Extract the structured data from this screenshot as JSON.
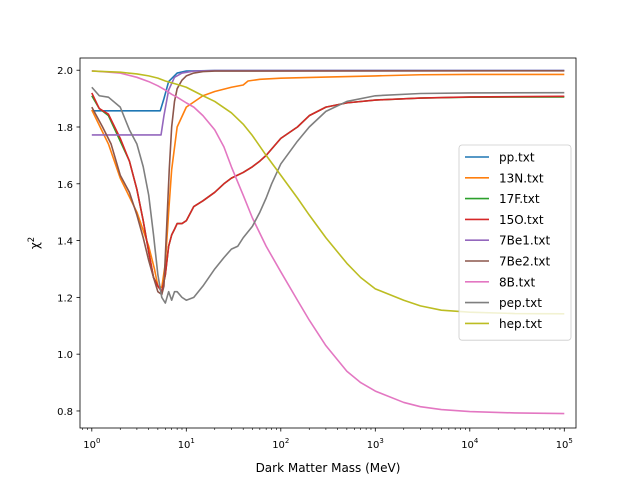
{
  "chart_data": {
    "type": "line",
    "xlabel": "Dark Matter Mass (MeV)",
    "ylabel": "χ",
    "ylabel_sup": "2",
    "xscale": "log",
    "xlim": [
      0.75,
      133000
    ],
    "ylim": [
      0.74,
      2.043
    ],
    "x_ticks": [
      {
        "value": 1,
        "base": "10",
        "exp": "0"
      },
      {
        "value": 10,
        "base": "10",
        "exp": "1"
      },
      {
        "value": 100,
        "base": "10",
        "exp": "2"
      },
      {
        "value": 1000,
        "base": "10",
        "exp": "3"
      },
      {
        "value": 10000,
        "base": "10",
        "exp": "4"
      },
      {
        "value": 100000,
        "base": "10",
        "exp": "5"
      }
    ],
    "y_ticks": [
      {
        "value": 0.8,
        "label": "0.8"
      },
      {
        "value": 1.0,
        "label": "1.0"
      },
      {
        "value": 1.2,
        "label": "1.2"
      },
      {
        "value": 1.4,
        "label": "1.4"
      },
      {
        "value": 1.6,
        "label": "1.6"
      },
      {
        "value": 1.8,
        "label": "1.8"
      },
      {
        "value": 2.0,
        "label": "2.0"
      }
    ],
    "legend_position": "center-right",
    "grid": false,
    "series": [
      {
        "name": "pp.txt",
        "color": "#1f77b4",
        "points": [
          [
            1,
            1.857
          ],
          [
            2,
            1.857
          ],
          [
            4,
            1.857
          ],
          [
            5.3,
            1.857
          ],
          [
            5.8,
            1.9
          ],
          [
            6.5,
            1.96
          ],
          [
            8,
            1.99
          ],
          [
            10,
            1.997
          ],
          [
            20,
            1.999
          ],
          [
            100000,
            1.999
          ]
        ]
      },
      {
        "name": "13N.txt",
        "color": "#ff7f0e",
        "points": [
          [
            1,
            1.86
          ],
          [
            1.5,
            1.74
          ],
          [
            2,
            1.62
          ],
          [
            3,
            1.5
          ],
          [
            4,
            1.38
          ],
          [
            4.6,
            1.3
          ],
          [
            5,
            1.24
          ],
          [
            5.5,
            1.235
          ],
          [
            6,
            1.32
          ],
          [
            6.5,
            1.5
          ],
          [
            7,
            1.65
          ],
          [
            8,
            1.8
          ],
          [
            10,
            1.87
          ],
          [
            15,
            1.91
          ],
          [
            20,
            1.925
          ],
          [
            30,
            1.94
          ],
          [
            40,
            1.948
          ],
          [
            45,
            1.962
          ],
          [
            60,
            1.968
          ],
          [
            100,
            1.972
          ],
          [
            300,
            1.976
          ],
          [
            1000,
            1.98
          ],
          [
            3000,
            1.984
          ],
          [
            10000,
            1.985
          ],
          [
            100000,
            1.985
          ]
        ]
      },
      {
        "name": "17F.txt",
        "color": "#2ca02c",
        "points": [
          [
            1,
            1.91
          ],
          [
            1.2,
            1.865
          ],
          [
            1.5,
            1.84
          ],
          [
            2,
            1.75
          ],
          [
            2.5,
            1.68
          ],
          [
            3,
            1.58
          ],
          [
            3.5,
            1.47
          ],
          [
            4,
            1.36
          ],
          [
            4.5,
            1.27
          ],
          [
            5,
            1.24
          ],
          [
            5.5,
            1.22
          ],
          [
            6,
            1.28
          ],
          [
            6.5,
            1.38
          ],
          [
            7,
            1.42
          ],
          [
            7.5,
            1.44
          ],
          [
            8,
            1.46
          ],
          [
            9,
            1.46
          ],
          [
            10,
            1.47
          ],
          [
            12,
            1.52
          ],
          [
            15,
            1.54
          ],
          [
            20,
            1.57
          ],
          [
            25,
            1.6
          ],
          [
            30,
            1.62
          ],
          [
            40,
            1.64
          ],
          [
            50,
            1.66
          ],
          [
            60,
            1.68
          ],
          [
            70,
            1.7
          ],
          [
            100,
            1.76
          ],
          [
            150,
            1.8
          ],
          [
            200,
            1.84
          ],
          [
            300,
            1.87
          ],
          [
            500,
            1.885
          ],
          [
            1000,
            1.895
          ],
          [
            3000,
            1.902
          ],
          [
            10000,
            1.905
          ],
          [
            100000,
            1.906
          ]
        ]
      },
      {
        "name": "15O.txt",
        "color": "#d62728",
        "points": [
          [
            1,
            1.92
          ],
          [
            1.2,
            1.865
          ],
          [
            1.5,
            1.845
          ],
          [
            2,
            1.76
          ],
          [
            2.5,
            1.68
          ],
          [
            3,
            1.58
          ],
          [
            3.5,
            1.47
          ],
          [
            4,
            1.36
          ],
          [
            4.5,
            1.27
          ],
          [
            5,
            1.24
          ],
          [
            5.5,
            1.22
          ],
          [
            6,
            1.28
          ],
          [
            6.5,
            1.38
          ],
          [
            7,
            1.42
          ],
          [
            7.5,
            1.44
          ],
          [
            8,
            1.46
          ],
          [
            9,
            1.46
          ],
          [
            10,
            1.47
          ],
          [
            12,
            1.52
          ],
          [
            15,
            1.54
          ],
          [
            20,
            1.57
          ],
          [
            25,
            1.6
          ],
          [
            30,
            1.62
          ],
          [
            40,
            1.64
          ],
          [
            50,
            1.66
          ],
          [
            60,
            1.68
          ],
          [
            70,
            1.7
          ],
          [
            100,
            1.76
          ],
          [
            150,
            1.8
          ],
          [
            200,
            1.84
          ],
          [
            300,
            1.87
          ],
          [
            500,
            1.885
          ],
          [
            1000,
            1.895
          ],
          [
            3000,
            1.902
          ],
          [
            10000,
            1.906
          ],
          [
            100000,
            1.908
          ]
        ]
      },
      {
        "name": "7Be1.txt",
        "color": "#9467bd",
        "points": [
          [
            1,
            1.772
          ],
          [
            2,
            1.772
          ],
          [
            4,
            1.772
          ],
          [
            5.4,
            1.772
          ],
          [
            5.8,
            1.84
          ],
          [
            6.5,
            1.93
          ],
          [
            7.5,
            1.975
          ],
          [
            9,
            1.99
          ],
          [
            12,
            1.997
          ],
          [
            20,
            1.999
          ],
          [
            100000,
            1.999
          ]
        ]
      },
      {
        "name": "7Be2.txt",
        "color": "#8c564b",
        "points": [
          [
            1,
            1.87
          ],
          [
            1.3,
            1.8
          ],
          [
            1.6,
            1.74
          ],
          [
            2,
            1.63
          ],
          [
            2.5,
            1.57
          ],
          [
            3,
            1.49
          ],
          [
            3.5,
            1.41
          ],
          [
            4,
            1.33
          ],
          [
            4.5,
            1.27
          ],
          [
            5,
            1.22
          ],
          [
            5.5,
            1.21
          ],
          [
            5.8,
            1.24
          ],
          [
            6.2,
            1.45
          ],
          [
            6.6,
            1.65
          ],
          [
            7,
            1.8
          ],
          [
            7.5,
            1.89
          ],
          [
            8,
            1.935
          ],
          [
            9,
            1.965
          ],
          [
            10,
            1.98
          ],
          [
            12,
            1.99
          ],
          [
            15,
            1.995
          ],
          [
            20,
            1.997
          ],
          [
            100000,
            1.998
          ]
        ]
      },
      {
        "name": "8B.txt",
        "color": "#e377c2",
        "points": [
          [
            1,
            1.998
          ],
          [
            2,
            1.99
          ],
          [
            3,
            1.975
          ],
          [
            4,
            1.96
          ],
          [
            5,
            1.945
          ],
          [
            6,
            1.93
          ],
          [
            7,
            1.915
          ],
          [
            8,
            1.905
          ],
          [
            10,
            1.885
          ],
          [
            12,
            1.87
          ],
          [
            15,
            1.84
          ],
          [
            20,
            1.79
          ],
          [
            25,
            1.73
          ],
          [
            30,
            1.66
          ],
          [
            40,
            1.56
          ],
          [
            50,
            1.48
          ],
          [
            70,
            1.38
          ],
          [
            100,
            1.29
          ],
          [
            150,
            1.19
          ],
          [
            200,
            1.12
          ],
          [
            300,
            1.03
          ],
          [
            500,
            0.94
          ],
          [
            700,
            0.9
          ],
          [
            1000,
            0.87
          ],
          [
            2000,
            0.83
          ],
          [
            3000,
            0.815
          ],
          [
            5000,
            0.805
          ],
          [
            10000,
            0.798
          ],
          [
            30000,
            0.793
          ],
          [
            100000,
            0.791
          ]
        ]
      },
      {
        "name": "pep.txt",
        "color": "#7f7f7f",
        "points": [
          [
            1,
            1.94
          ],
          [
            1.2,
            1.91
          ],
          [
            1.5,
            1.905
          ],
          [
            2,
            1.87
          ],
          [
            2.5,
            1.79
          ],
          [
            3,
            1.74
          ],
          [
            3.5,
            1.66
          ],
          [
            4,
            1.56
          ],
          [
            4.5,
            1.42
          ],
          [
            5,
            1.28
          ],
          [
            5.5,
            1.2
          ],
          [
            6,
            1.18
          ],
          [
            6.5,
            1.22
          ],
          [
            7,
            1.19
          ],
          [
            7.5,
            1.22
          ],
          [
            8,
            1.22
          ],
          [
            9,
            1.2
          ],
          [
            10,
            1.19
          ],
          [
            12,
            1.2
          ],
          [
            15,
            1.24
          ],
          [
            20,
            1.3
          ],
          [
            25,
            1.34
          ],
          [
            30,
            1.37
          ],
          [
            35,
            1.38
          ],
          [
            40,
            1.41
          ],
          [
            50,
            1.45
          ],
          [
            60,
            1.5
          ],
          [
            70,
            1.55
          ],
          [
            80,
            1.6
          ],
          [
            100,
            1.67
          ],
          [
            150,
            1.75
          ],
          [
            200,
            1.8
          ],
          [
            300,
            1.855
          ],
          [
            500,
            1.89
          ],
          [
            1000,
            1.91
          ],
          [
            3000,
            1.918
          ],
          [
            10000,
            1.92
          ],
          [
            100000,
            1.921
          ]
        ]
      },
      {
        "name": "hep.txt",
        "color": "#bcbd22",
        "points": [
          [
            1,
            1.997
          ],
          [
            2,
            1.993
          ],
          [
            3,
            1.987
          ],
          [
            4,
            1.98
          ],
          [
            5,
            1.972
          ],
          [
            6,
            1.962
          ],
          [
            8,
            1.95
          ],
          [
            10,
            1.94
          ],
          [
            15,
            1.91
          ],
          [
            20,
            1.89
          ],
          [
            30,
            1.85
          ],
          [
            40,
            1.81
          ],
          [
            50,
            1.77
          ],
          [
            70,
            1.7
          ],
          [
            100,
            1.63
          ],
          [
            150,
            1.55
          ],
          [
            200,
            1.49
          ],
          [
            300,
            1.41
          ],
          [
            500,
            1.32
          ],
          [
            700,
            1.27
          ],
          [
            1000,
            1.23
          ],
          [
            2000,
            1.19
          ],
          [
            3000,
            1.17
          ],
          [
            5000,
            1.155
          ],
          [
            10000,
            1.148
          ],
          [
            30000,
            1.143
          ],
          [
            100000,
            1.142
          ]
        ]
      }
    ]
  }
}
